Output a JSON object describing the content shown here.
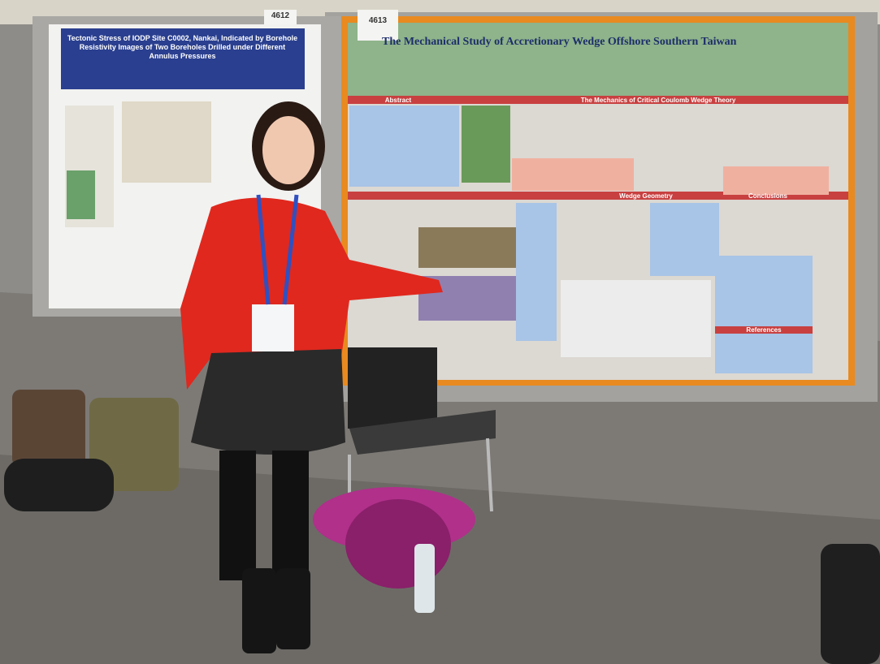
{
  "left_poster": {
    "booth_number": "4612",
    "title": "Tectonic Stress of IODP Site C0002, Nankai, Indicated by Borehole Resistivity Images of Two Boreholes Drilled under Different Annulus Pressures"
  },
  "right_poster": {
    "booth_number": "4613",
    "title": "The Mechanical Study of Accretionary Wedge Offshore Southern Taiwan",
    "sections": [
      "Abstract",
      "The Mechanics of Critical Coulomb Wedge Theory",
      "Wedge Geometry",
      "Conclusions",
      "References"
    ]
  }
}
